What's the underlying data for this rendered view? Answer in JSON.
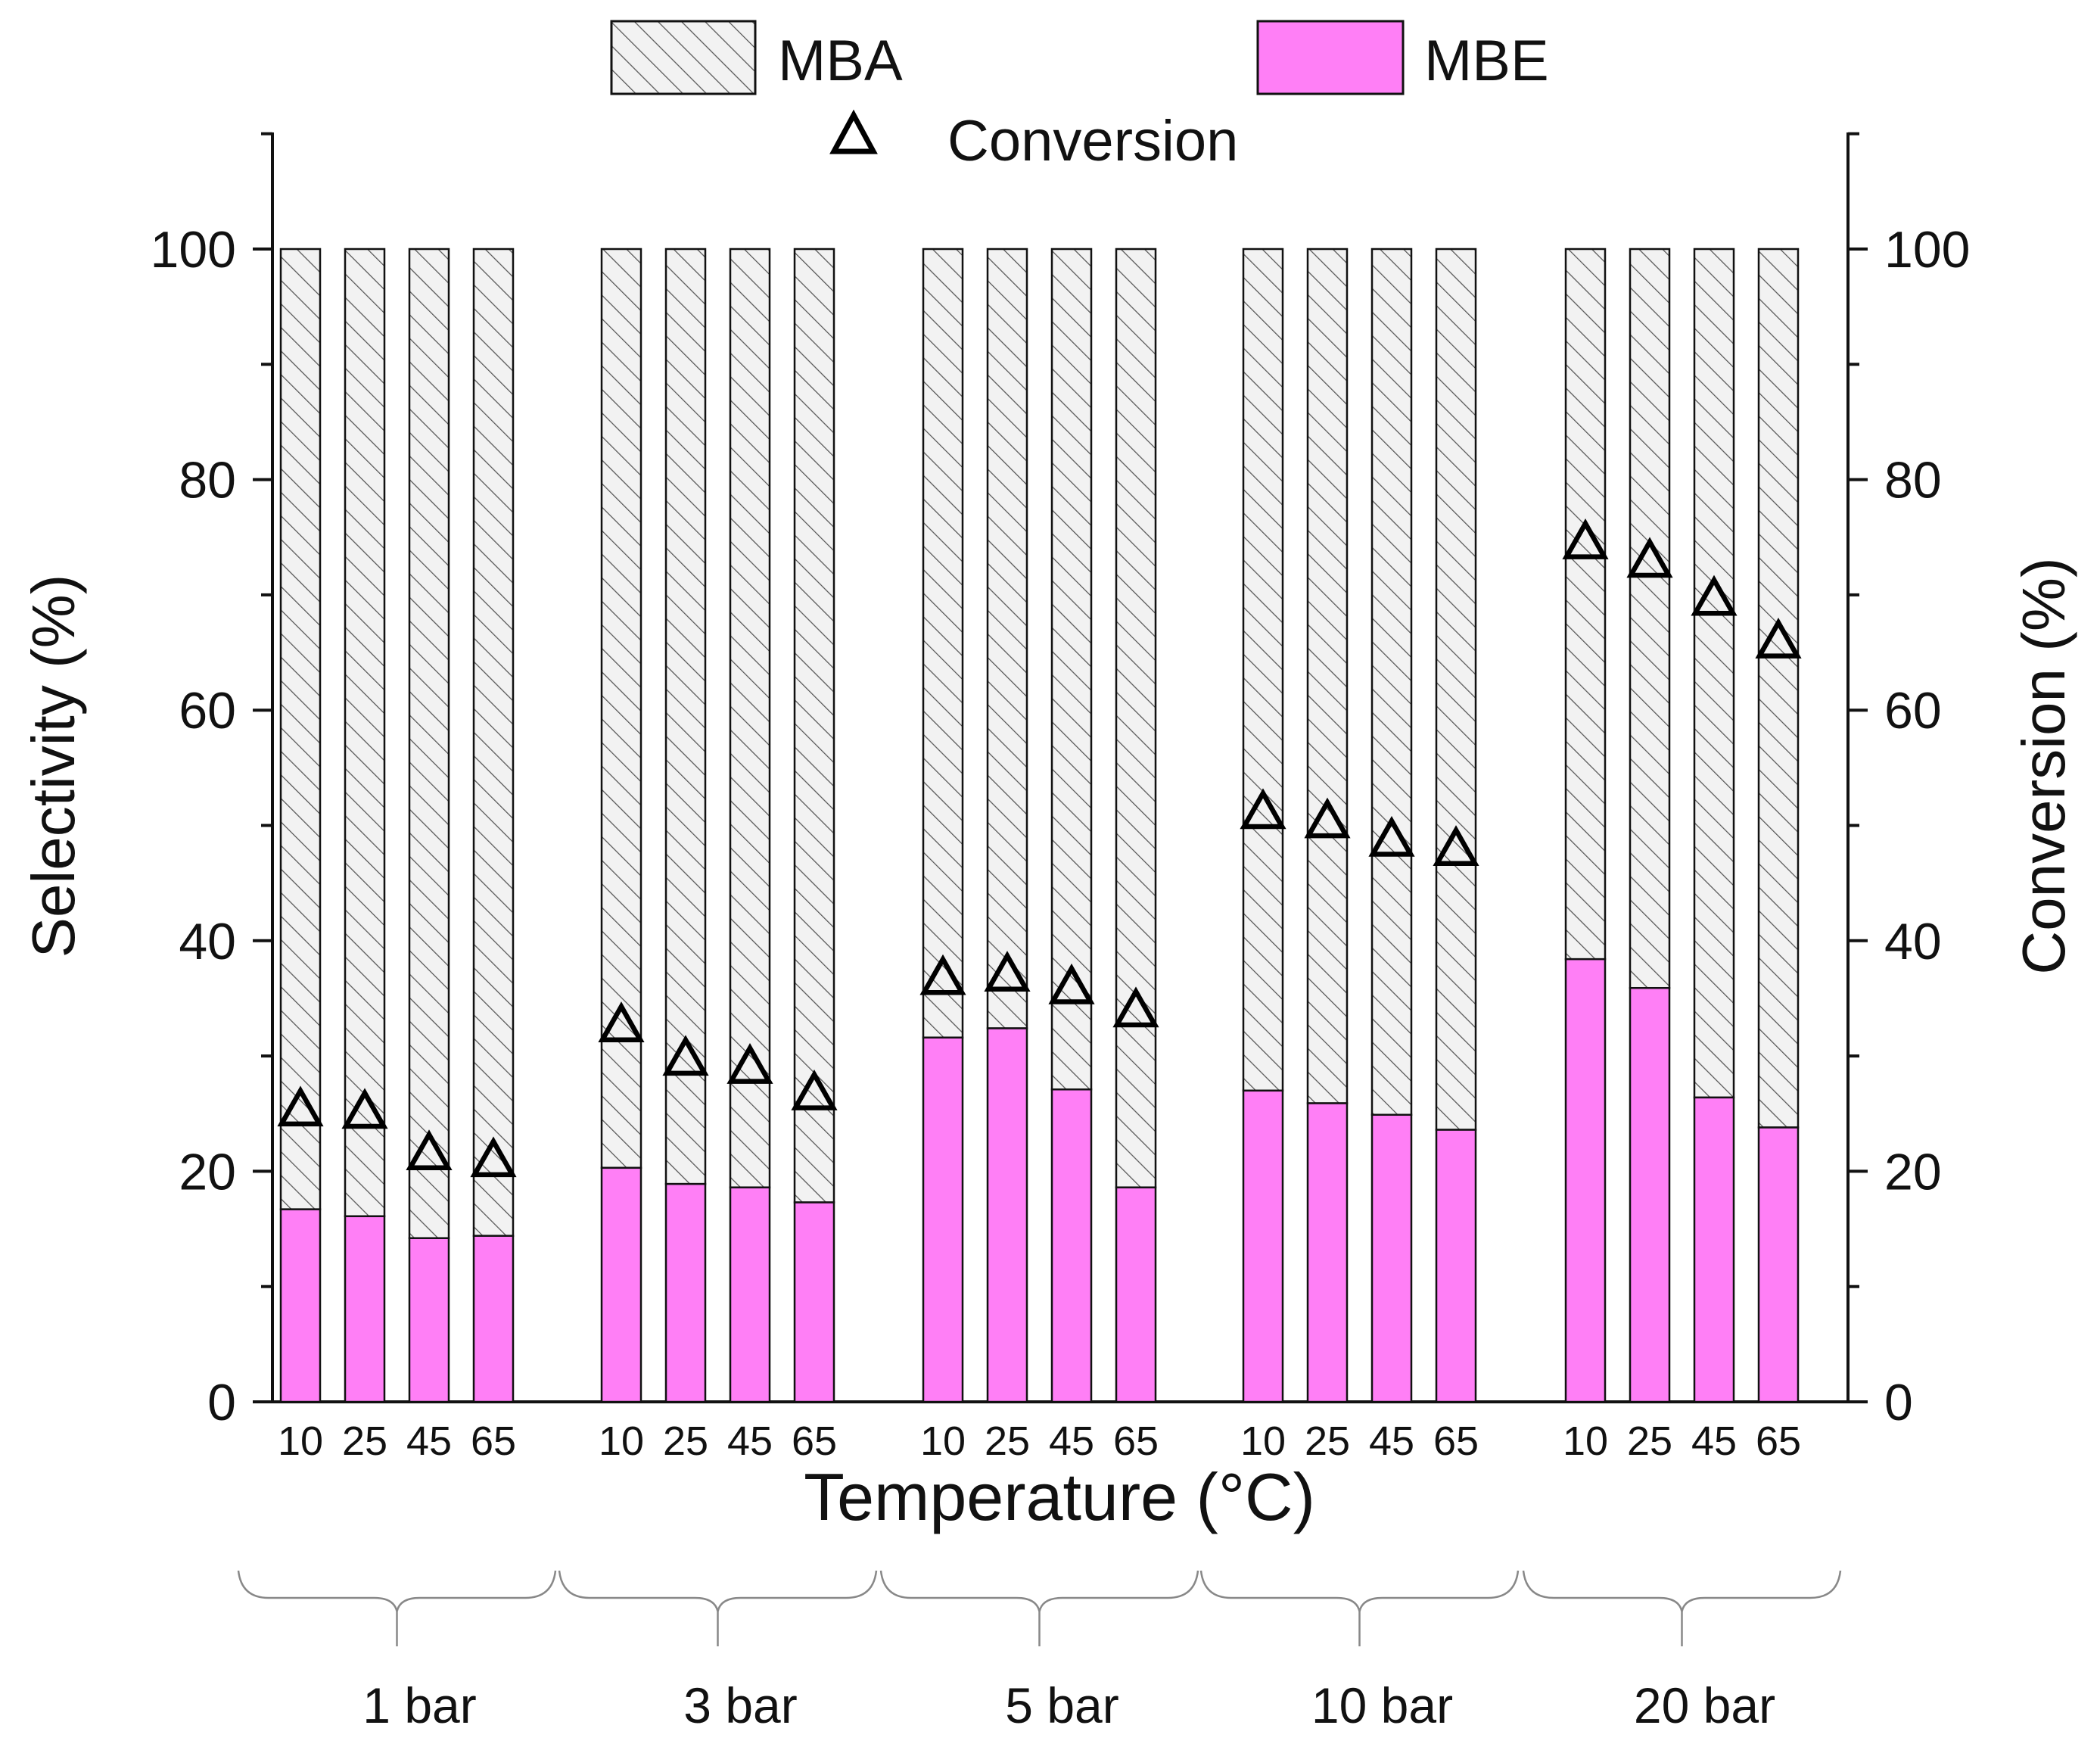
{
  "chart_data": {
    "type": "bar",
    "stacked": true,
    "xlabel": "Temperature (°C)",
    "ylabel": "Selectivity (%)",
    "y2label": "Conversion (%)",
    "ylim": [
      0,
      110
    ],
    "y2lim": [
      0,
      110
    ],
    "yticks": [
      0,
      20,
      40,
      60,
      80,
      100
    ],
    "legend": {
      "position": "top",
      "entries": [
        "MBA",
        "MBE",
        "Conversion"
      ]
    },
    "groups": [
      {
        "label": "1 bar",
        "temperatures": [
          "10",
          "25",
          "45",
          "65"
        ],
        "MBE": [
          16.7,
          16.1,
          14.2,
          14.4
        ],
        "MBA": [
          83.3,
          83.9,
          85.8,
          85.6
        ],
        "conversion": [
          25.2,
          25.0,
          21.4,
          20.8
        ]
      },
      {
        "label": "3 bar",
        "temperatures": [
          "10",
          "25",
          "45",
          "65"
        ],
        "MBE": [
          20.3,
          18.9,
          18.6,
          17.3
        ],
        "MBA": [
          79.7,
          81.1,
          81.4,
          82.7
        ],
        "conversion": [
          32.5,
          29.6,
          28.9,
          26.6
        ]
      },
      {
        "label": "5 bar",
        "temperatures": [
          "10",
          "25",
          "45",
          "65"
        ],
        "MBE": [
          31.6,
          32.4,
          27.1,
          18.6
        ],
        "MBA": [
          68.4,
          67.6,
          72.9,
          81.4
        ],
        "conversion": [
          36.6,
          36.9,
          35.8,
          33.8
        ]
      },
      {
        "label": "10 bar",
        "temperatures": [
          "10",
          "25",
          "45",
          "65"
        ],
        "MBE": [
          27.0,
          25.9,
          24.9,
          23.6
        ],
        "MBA": [
          73.0,
          74.1,
          75.1,
          76.4
        ],
        "conversion": [
          51.0,
          50.2,
          48.6,
          47.8
        ]
      },
      {
        "label": "20 bar",
        "temperatures": [
          "10",
          "25",
          "45",
          "65"
        ],
        "MBE": [
          38.4,
          35.9,
          26.4,
          23.8
        ],
        "MBA": [
          61.6,
          64.1,
          73.6,
          76.2
        ],
        "conversion": [
          74.4,
          72.8,
          69.5,
          65.8
        ]
      }
    ],
    "colors": {
      "MBE": "#ff7ff6",
      "MBA": "#f2f2f2",
      "hatch": "#555555",
      "outline": "#111111"
    }
  }
}
